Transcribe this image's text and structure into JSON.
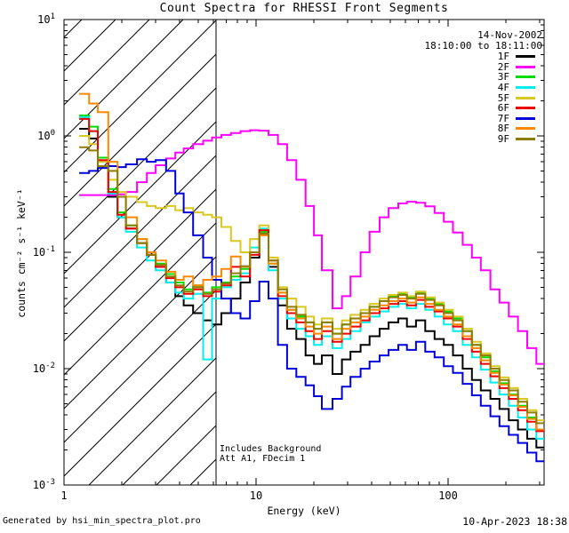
{
  "title": "Count Spectra for RHESSI Front Segments",
  "header": {
    "date": "14-Nov-2002",
    "time_range": "18:10:00 to 18:11:00"
  },
  "annotations": {
    "line1": "Includes Background",
    "line2": "Att A1, FDecim 1"
  },
  "footer": {
    "left": "Generated by hsi_min_spectra_plot.pro",
    "right": "10-Apr-2023 18:38"
  },
  "legend": {
    "entries": [
      {
        "label": "1F",
        "color": "#000000"
      },
      {
        "label": "2F",
        "color": "#ff00ff"
      },
      {
        "label": "3F",
        "color": "#00dd00"
      },
      {
        "label": "4F",
        "color": "#00eeee"
      },
      {
        "label": "5F",
        "color": "#d8c820"
      },
      {
        "label": "6F",
        "color": "#ee0000"
      },
      {
        "label": "7F",
        "color": "#0000dd"
      },
      {
        "label": "8F",
        "color": "#ff8800"
      },
      {
        "label": "9F",
        "color": "#8e7c00"
      }
    ]
  },
  "chart_data": {
    "type": "line",
    "title": "Count Spectra for RHESSI Front Segments",
    "xlabel": "Energy (keV)",
    "ylabel": "counts cm⁻² s⁻¹ keV⁻¹",
    "xscale": "log",
    "yscale": "log",
    "xlim": [
      1,
      316
    ],
    "ylim": [
      0.001,
      10
    ],
    "x_tick_labels": [
      "1",
      "10",
      "100"
    ],
    "x_tick_values": [
      1,
      10,
      100
    ],
    "y_tick_exponents": [
      1,
      0,
      -1,
      -2,
      -3
    ],
    "hatch_region_kev": [
      1,
      6.2
    ],
    "attenuator_line_kev": 6.2,
    "energies_kev": [
      1.2,
      1.35,
      1.5,
      1.7,
      1.9,
      2.1,
      2.4,
      2.7,
      3.0,
      3.4,
      3.8,
      4.2,
      4.7,
      5.3,
      5.9,
      6.6,
      7.4,
      8.3,
      9.3,
      10.4,
      11.6,
      13,
      14.5,
      16.2,
      18.1,
      20,
      22,
      25,
      28,
      31,
      35,
      39,
      44,
      49,
      55,
      61,
      68,
      76,
      85,
      95,
      106,
      119,
      133,
      148,
      166,
      185,
      207,
      231,
      258,
      288
    ],
    "series": [
      {
        "name": "1F",
        "color": "#000000",
        "values": [
          1.15,
          0.95,
          0.55,
          0.3,
          0.2,
          0.16,
          0.12,
          0.095,
          0.075,
          0.055,
          0.042,
          0.035,
          0.03,
          0.026,
          0.024,
          0.03,
          0.04,
          0.055,
          0.09,
          0.145,
          0.075,
          0.035,
          0.022,
          0.018,
          0.013,
          0.011,
          0.013,
          0.009,
          0.012,
          0.014,
          0.016,
          0.019,
          0.022,
          0.025,
          0.027,
          0.023,
          0.026,
          0.021,
          0.018,
          0.016,
          0.013,
          0.01,
          0.008,
          0.0065,
          0.0055,
          0.0045,
          0.0036,
          0.003,
          0.0025,
          0.0021
        ]
      },
      {
        "name": "2F",
        "color": "#ff00ff",
        "values": [
          0.31,
          0.31,
          0.31,
          0.31,
          0.315,
          0.33,
          0.4,
          0.48,
          0.56,
          0.64,
          0.72,
          0.78,
          0.85,
          0.91,
          0.97,
          1.02,
          1.06,
          1.1,
          1.12,
          1.11,
          1.02,
          0.85,
          0.62,
          0.42,
          0.25,
          0.14,
          0.07,
          0.033,
          0.042,
          0.062,
          0.1,
          0.15,
          0.2,
          0.24,
          0.263,
          0.272,
          0.266,
          0.248,
          0.218,
          0.183,
          0.148,
          0.116,
          0.09,
          0.07,
          0.048,
          0.037,
          0.028,
          0.021,
          0.015,
          0.011
        ]
      },
      {
        "name": "3F",
        "color": "#00dd00",
        "values": [
          1.5,
          1.2,
          0.65,
          0.35,
          0.22,
          0.17,
          0.13,
          0.1,
          0.08,
          0.065,
          0.055,
          0.048,
          0.052,
          0.045,
          0.05,
          0.055,
          0.062,
          0.072,
          0.1,
          0.15,
          0.08,
          0.045,
          0.032,
          0.028,
          0.025,
          0.022,
          0.025,
          0.02,
          0.024,
          0.027,
          0.03,
          0.034,
          0.038,
          0.042,
          0.044,
          0.041,
          0.045,
          0.04,
          0.036,
          0.031,
          0.027,
          0.021,
          0.016,
          0.0125,
          0.0095,
          0.0075,
          0.006,
          0.0048,
          0.0038,
          0.003
        ]
      },
      {
        "name": "4F",
        "color": "#00eeee",
        "values": [
          1.45,
          1.1,
          0.6,
          0.32,
          0.2,
          0.15,
          0.11,
          0.085,
          0.07,
          0.055,
          0.045,
          0.04,
          0.044,
          0.012,
          0.04,
          0.05,
          0.058,
          0.066,
          0.11,
          0.16,
          0.07,
          0.04,
          0.027,
          0.022,
          0.019,
          0.016,
          0.019,
          0.015,
          0.018,
          0.021,
          0.025,
          0.028,
          0.031,
          0.034,
          0.036,
          0.033,
          0.036,
          0.032,
          0.028,
          0.024,
          0.021,
          0.016,
          0.0125,
          0.0098,
          0.0076,
          0.006,
          0.0048,
          0.0038,
          0.003,
          0.0025
        ]
      },
      {
        "name": "5F",
        "color": "#d8c820",
        "values": [
          1.0,
          0.85,
          0.6,
          0.42,
          0.33,
          0.3,
          0.27,
          0.25,
          0.24,
          0.25,
          0.23,
          0.24,
          0.22,
          0.21,
          0.2,
          0.165,
          0.125,
          0.1,
          0.13,
          0.17,
          0.09,
          0.05,
          0.04,
          0.034,
          0.028,
          0.024,
          0.027,
          0.022,
          0.026,
          0.029,
          0.032,
          0.036,
          0.04,
          0.043,
          0.045,
          0.042,
          0.046,
          0.041,
          0.037,
          0.032,
          0.028,
          0.022,
          0.017,
          0.0135,
          0.0105,
          0.0084,
          0.0068,
          0.0055,
          0.0044,
          0.0036
        ]
      },
      {
        "name": "6F",
        "color": "#ee0000",
        "values": [
          1.4,
          1.1,
          0.62,
          0.33,
          0.21,
          0.16,
          0.12,
          0.095,
          0.075,
          0.06,
          0.05,
          0.044,
          0.048,
          0.042,
          0.046,
          0.052,
          0.075,
          0.062,
          0.095,
          0.155,
          0.085,
          0.042,
          0.03,
          0.025,
          0.021,
          0.018,
          0.021,
          0.017,
          0.02,
          0.023,
          0.026,
          0.03,
          0.033,
          0.036,
          0.038,
          0.035,
          0.039,
          0.034,
          0.031,
          0.027,
          0.023,
          0.018,
          0.014,
          0.011,
          0.0086,
          0.0068,
          0.0055,
          0.0044,
          0.0035,
          0.0029
        ]
      },
      {
        "name": "7F",
        "color": "#0000dd",
        "values": [
          0.48,
          0.5,
          0.53,
          0.55,
          0.54,
          0.57,
          0.63,
          0.6,
          0.62,
          0.5,
          0.32,
          0.22,
          0.14,
          0.09,
          0.058,
          0.04,
          0.03,
          0.027,
          0.038,
          0.056,
          0.04,
          0.016,
          0.01,
          0.0085,
          0.0072,
          0.0058,
          0.0045,
          0.0055,
          0.007,
          0.0085,
          0.01,
          0.0115,
          0.013,
          0.0145,
          0.016,
          0.0145,
          0.017,
          0.014,
          0.0125,
          0.0105,
          0.0092,
          0.0074,
          0.0059,
          0.0048,
          0.0039,
          0.0032,
          0.0027,
          0.0023,
          0.0019,
          0.0016
        ]
      },
      {
        "name": "8F",
        "color": "#ff8800",
        "values": [
          2.3,
          1.9,
          1.6,
          0.6,
          0.3,
          0.2,
          0.13,
          0.1,
          0.085,
          0.068,
          0.058,
          0.062,
          0.052,
          0.058,
          0.062,
          0.072,
          0.092,
          0.075,
          0.1,
          0.14,
          0.08,
          0.045,
          0.032,
          0.027,
          0.023,
          0.02,
          0.023,
          0.018,
          0.022,
          0.025,
          0.028,
          0.032,
          0.035,
          0.038,
          0.04,
          0.037,
          0.041,
          0.036,
          0.032,
          0.028,
          0.024,
          0.019,
          0.015,
          0.0118,
          0.0092,
          0.0073,
          0.0059,
          0.0047,
          0.0037,
          0.003
        ]
      },
      {
        "name": "9F",
        "color": "#8e7c00",
        "values": [
          0.8,
          0.75,
          0.55,
          0.5,
          0.3,
          0.17,
          0.12,
          0.095,
          0.078,
          0.062,
          0.052,
          0.046,
          0.05,
          0.044,
          0.048,
          0.054,
          0.066,
          0.076,
          0.1,
          0.145,
          0.085,
          0.048,
          0.034,
          0.029,
          0.025,
          0.022,
          0.025,
          0.02,
          0.024,
          0.027,
          0.03,
          0.034,
          0.038,
          0.041,
          0.043,
          0.04,
          0.044,
          0.039,
          0.035,
          0.03,
          0.026,
          0.021,
          0.016,
          0.013,
          0.01,
          0.008,
          0.0065,
          0.0052,
          0.0042,
          0.0034
        ]
      }
    ]
  }
}
